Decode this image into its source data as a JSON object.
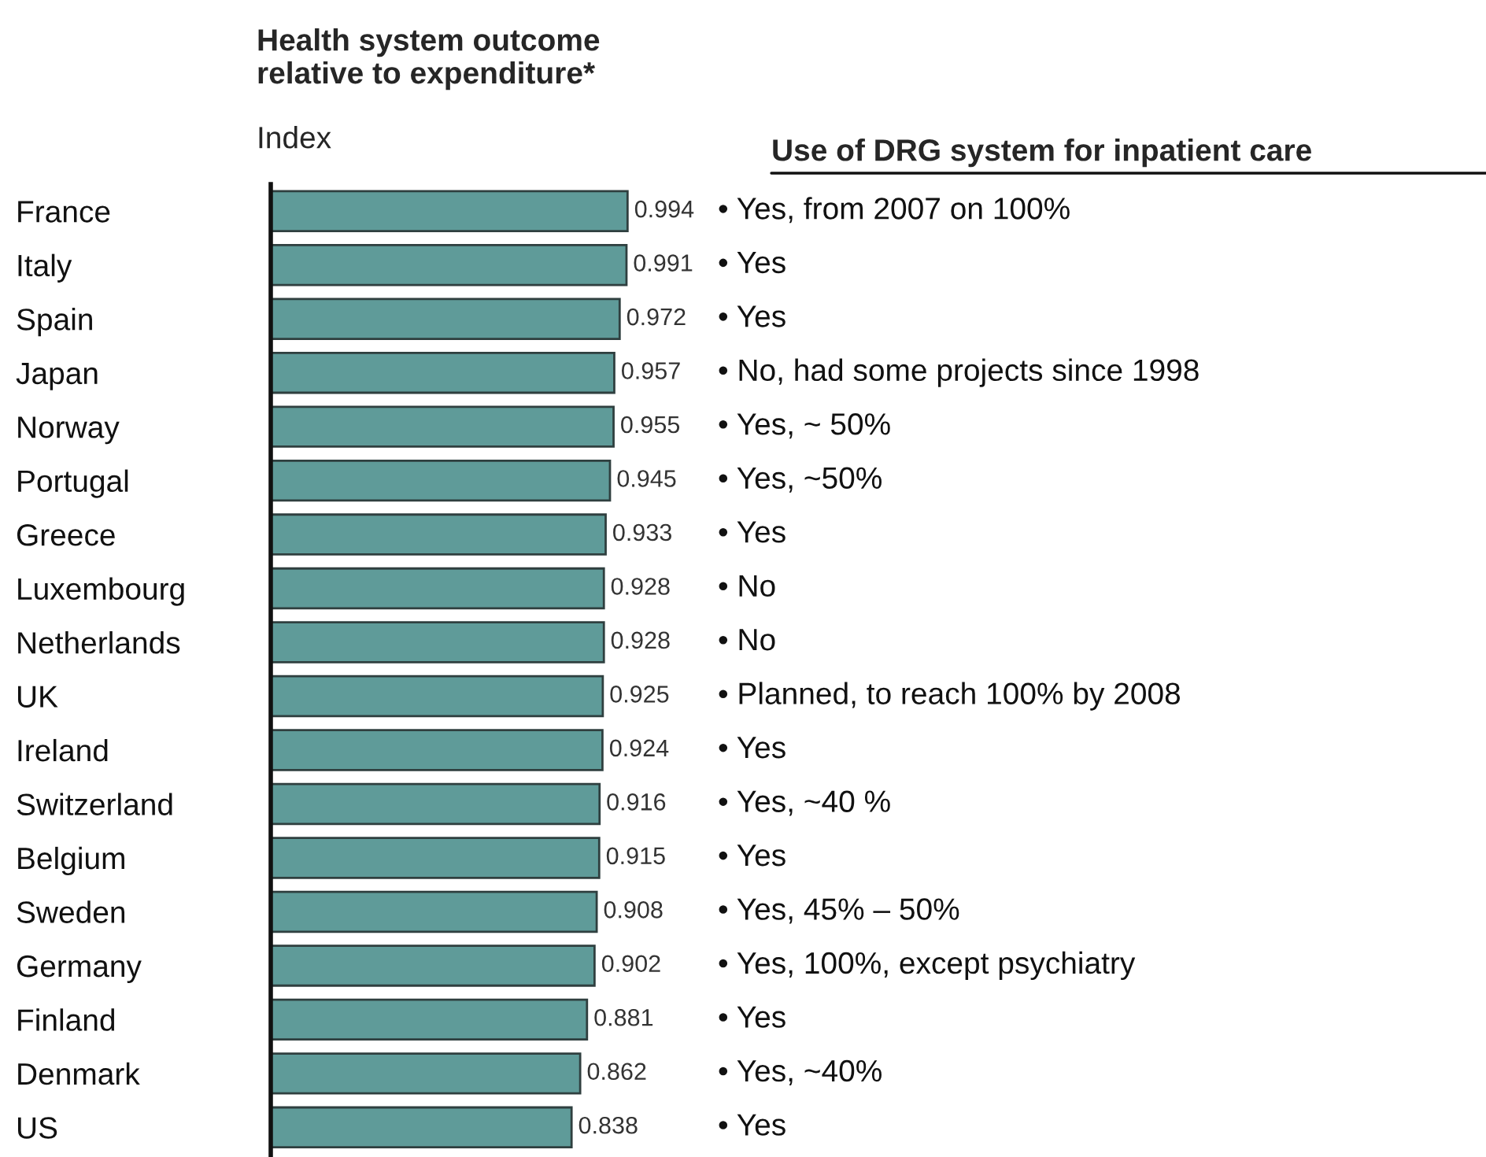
{
  "chart_data": {
    "type": "bar",
    "orientation": "horizontal",
    "title": "Health system outcome\nrelative to expenditure*",
    "subtitle": "Index",
    "categories": [
      "France",
      "Italy",
      "Spain",
      "Japan",
      "Norway",
      "Portugal",
      "Greece",
      "Luxembourg",
      "Netherlands",
      "UK",
      "Ireland",
      "Switzerland",
      "Belgium",
      "Sweden",
      "Germany",
      "Finland",
      "Denmark",
      "US"
    ],
    "values": [
      0.994,
      0.991,
      0.972,
      0.957,
      0.955,
      0.945,
      0.933,
      0.928,
      0.928,
      0.925,
      0.924,
      0.916,
      0.915,
      0.908,
      0.902,
      0.881,
      0.862,
      0.838
    ],
    "color": "#5f9b99",
    "data_labels": true,
    "tick_labels": "y",
    "grid": false,
    "legend": false,
    "annotations": [
      "Use of DRG system for inpatient care",
      "• Yes, from 2007 on 100%",
      "• Yes",
      "• Yes",
      "• No, had some projects since 1998",
      "• Yes, ~ 50%",
      "• Yes, ~50%",
      "• Yes",
      "• No",
      "• No",
      "• Planned, to reach 100% by 2008",
      "• Yes",
      "• Yes, ~40 %",
      "• Yes",
      "• Yes, 45% – 50%",
      "• Yes, 100%, except psychiatry",
      "• Yes",
      "• Yes, ~40%",
      "• Yes"
    ]
  }
}
